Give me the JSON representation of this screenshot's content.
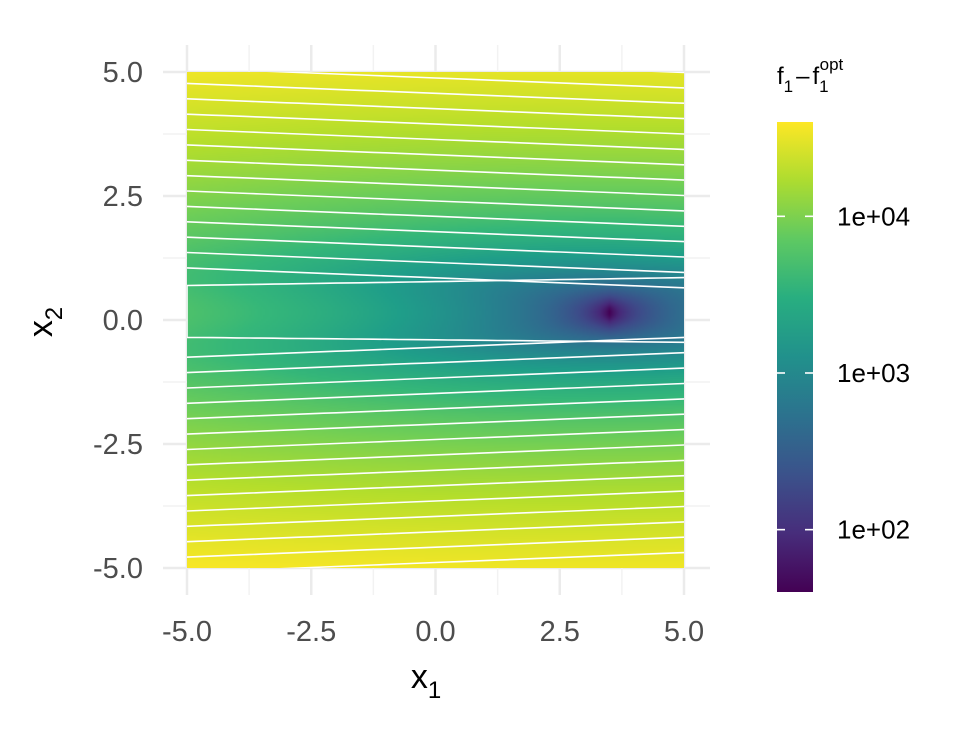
{
  "chart_data": {
    "type": "heatmap",
    "xlabel": "x",
    "xlabel_sub": "1",
    "ylabel": "x",
    "ylabel_sub": "2",
    "xlim": [
      -5,
      5
    ],
    "ylim": [
      -5,
      5
    ],
    "x_ticks": [
      -5.0,
      -2.5,
      0.0,
      2.5,
      5.0
    ],
    "x_tick_labels": [
      "-5.0",
      "-2.5",
      "0.0",
      "2.5",
      "5.0"
    ],
    "y_ticks": [
      -5.0,
      -2.5,
      0.0,
      2.5,
      5.0
    ],
    "y_tick_labels": [
      "-5.0",
      "-2.5",
      "0.0",
      "2.5",
      "5.0"
    ],
    "grid": true,
    "colorscale": "viridis",
    "colorbar": {
      "title_main": "f",
      "title_sub_1": "1",
      "title_minus": "–",
      "title_sup": "opt",
      "scale": "log",
      "range": [
        40,
        40000
      ],
      "ticks": [
        100,
        1000,
        10000
      ],
      "tick_labels": [
        "1e+02",
        "1e+03",
        "1e+04"
      ],
      "position": "right"
    },
    "optimum": {
      "x1": 3.5,
      "x2": 0.15,
      "value": 40
    },
    "contours": {
      "color": "#ffffff",
      "count": 30,
      "orientation": "horizontal bands around x2 = 0.15"
    }
  }
}
